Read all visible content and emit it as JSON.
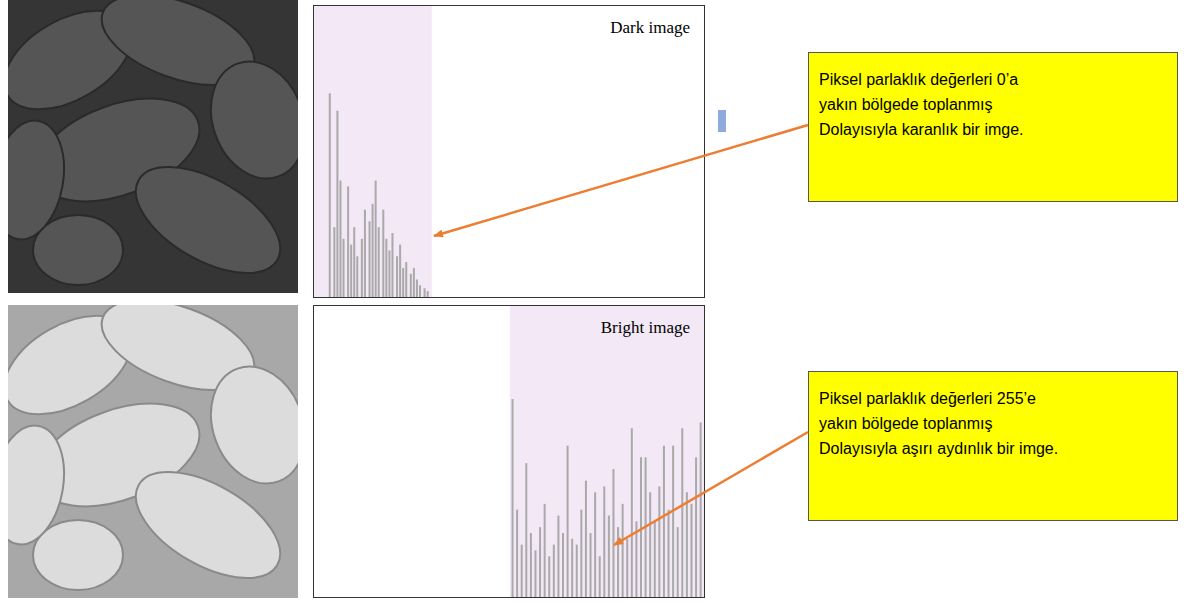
{
  "chart_data": [
    {
      "type": "bar",
      "title": "Dark image",
      "x": [
        10,
        13,
        15,
        17,
        19,
        22,
        24,
        26,
        28,
        31,
        33,
        36,
        38,
        40,
        42,
        45,
        47,
        49,
        51,
        54,
        56,
        58,
        60,
        63,
        65,
        67,
        69,
        72,
        74
      ],
      "values": [
        3.5,
        1.2,
        3.2,
        2.0,
        1.0,
        1.9,
        0.9,
        1.2,
        0.7,
        1.0,
        1.5,
        1.3,
        1.6,
        2.0,
        1.2,
        1.5,
        1.0,
        0.8,
        1.1,
        0.7,
        0.9,
        0.5,
        0.6,
        0.4,
        0.5,
        0.3,
        0.2,
        0.15,
        0.1
      ],
      "color": "#a9a9a9",
      "xlim": [
        0,
        255
      ],
      "xticks": [
        0,
        51,
        102,
        153,
        204,
        255
      ],
      "ylim": [
        0,
        5
      ],
      "yticks": [
        0,
        1,
        2,
        3,
        4,
        5
      ],
      "tick_labels": false,
      "highlight": [
        0,
        77
      ],
      "annotations": [
        "Piksel parlaklık değerleri 0’a",
        "yakın bölgede toplanmış",
        "Dolayısıyla karanlık bir imge."
      ]
    },
    {
      "type": "bar",
      "title": "Bright image",
      "x": [
        130,
        133,
        136,
        139,
        142,
        145,
        148,
        151,
        154,
        157,
        160,
        163,
        166,
        169,
        172,
        175,
        178,
        181,
        184,
        187,
        190,
        193,
        196,
        199,
        202,
        205,
        208,
        211,
        214,
        217,
        220,
        223,
        226,
        229,
        232,
        235,
        238,
        241,
        244,
        247,
        250,
        253
      ],
      "values": [
        3.4,
        1.5,
        0.9,
        2.3,
        1.1,
        0.8,
        1.2,
        1.6,
        0.7,
        0.9,
        1.4,
        1.1,
        2.6,
        1.0,
        0.9,
        1.5,
        2.0,
        1.1,
        1.8,
        0.7,
        1.9,
        1.4,
        2.2,
        1.2,
        1.6,
        1.0,
        2.9,
        1.3,
        2.4,
        2.4,
        1.8,
        1.3,
        1.9,
        2.6,
        1.5,
        2.6,
        1.2,
        2.9,
        1.8,
        1.6,
        2.4,
        3.0
      ],
      "color": "#a9a9a9",
      "xlim": [
        0,
        255
      ],
      "xticks": [
        0,
        51,
        102,
        153,
        204,
        255
      ],
      "ylim": [
        0,
        5
      ],
      "yticks": [
        0,
        1,
        2,
        3,
        4,
        5
      ],
      "tick_labels": false,
      "highlight": [
        128,
        255
      ],
      "annotations": [
        "Piksel parlaklık değerleri 255’e",
        "yakın bölgede toplanmış",
        "Dolayısıyla aşırı aydınlık bir imge."
      ]
    }
  ]
}
